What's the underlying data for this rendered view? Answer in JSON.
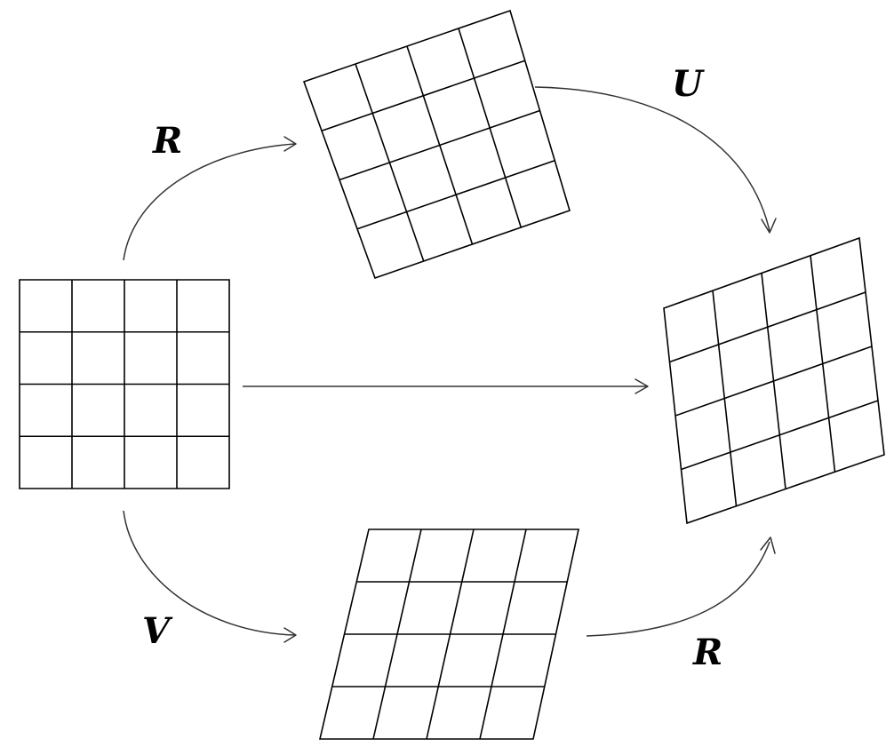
{
  "colors": {
    "line": "#000000",
    "arrow": "#333333",
    "background": "#ffffff"
  },
  "labels": {
    "top_left_op": "R",
    "top_right_op": "U",
    "bottom_left_op": "V",
    "bottom_right_op": "R"
  },
  "grids": [
    {
      "name": "grid-original",
      "rows": 4,
      "cols": 4
    },
    {
      "name": "grid-rotated",
      "rows": 4,
      "cols": 4
    },
    {
      "name": "grid-final",
      "rows": 4,
      "cols": 4
    },
    {
      "name": "grid-sheared",
      "rows": 4,
      "cols": 4
    }
  ]
}
